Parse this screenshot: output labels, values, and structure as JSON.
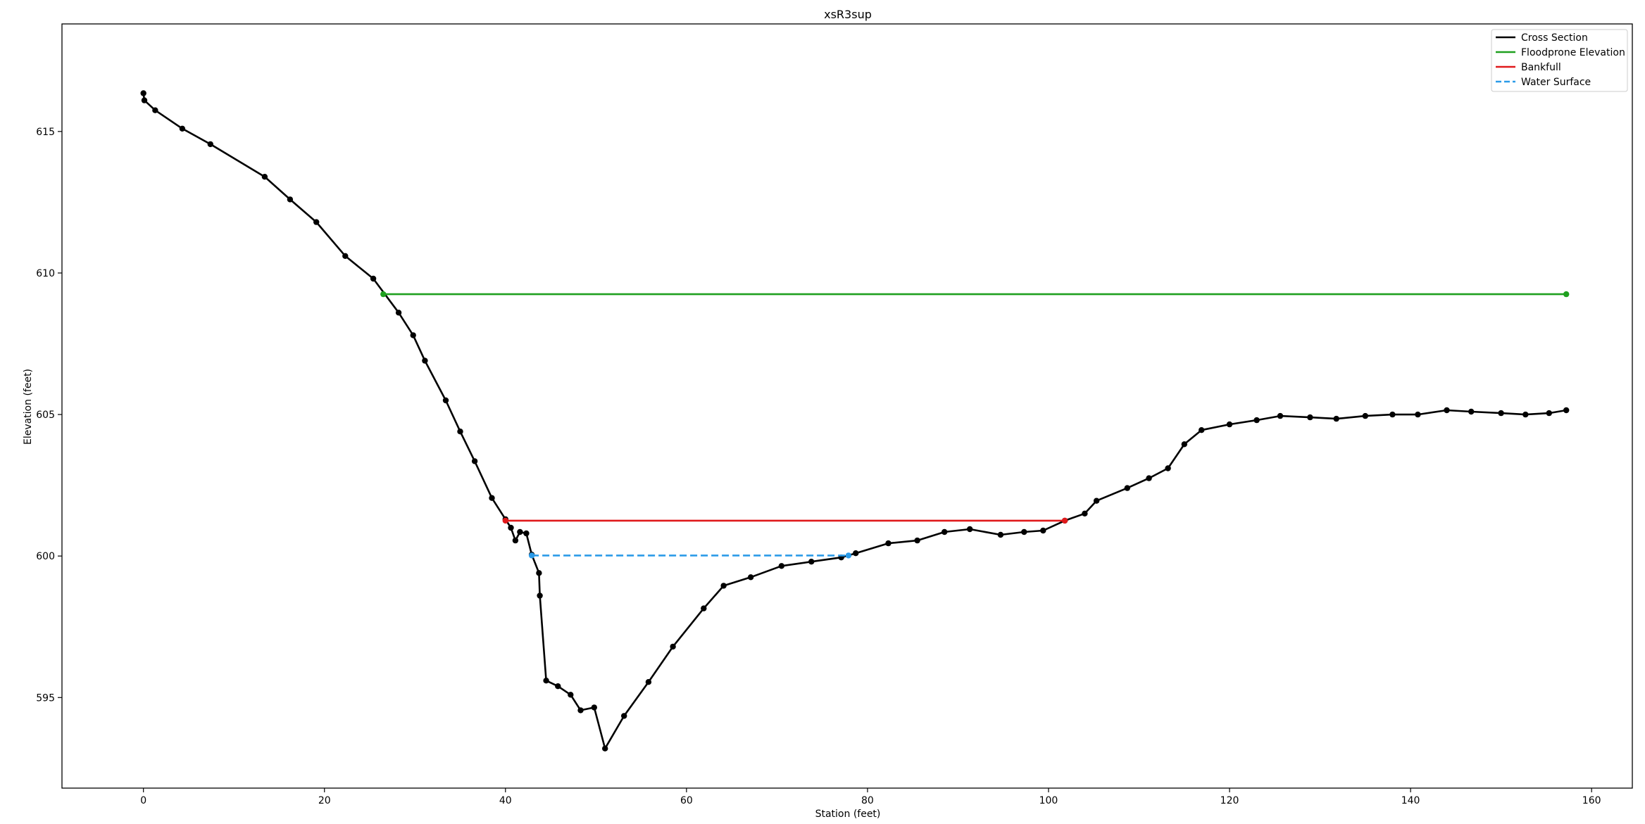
{
  "chart_data": {
    "type": "line",
    "title": "xsR3sup",
    "xlabel": "Station (feet)",
    "ylabel": "Elevation (feet)",
    "xlim": [
      -9,
      164.5
    ],
    "ylim": [
      591.8,
      618.8
    ],
    "xticks": [
      0,
      20,
      40,
      60,
      80,
      100,
      120,
      140,
      160
    ],
    "yticks": [
      595,
      600,
      605,
      610,
      615
    ],
    "grid": false,
    "legend_position": "top-right",
    "series": [
      {
        "name": "Cross Section",
        "color": "#000000",
        "style": "solid",
        "markers": true,
        "points": [
          [
            0,
            616.35
          ],
          [
            0.1,
            616.1
          ],
          [
            1.3,
            615.75
          ],
          [
            4.3,
            615.1
          ],
          [
            7.4,
            614.55
          ],
          [
            13.4,
            613.4
          ],
          [
            16.2,
            612.6
          ],
          [
            19.1,
            611.8
          ],
          [
            22.3,
            610.6
          ],
          [
            25.4,
            609.8
          ],
          [
            28.2,
            608.6
          ],
          [
            29.8,
            607.8
          ],
          [
            31.1,
            606.9
          ],
          [
            33.4,
            605.5
          ],
          [
            35.0,
            604.4
          ],
          [
            36.6,
            603.35
          ],
          [
            38.5,
            602.05
          ],
          [
            40.0,
            601.3
          ],
          [
            40.6,
            601.0
          ],
          [
            41.1,
            600.55
          ],
          [
            41.6,
            600.85
          ],
          [
            42.3,
            600.8
          ],
          [
            42.9,
            600.05
          ],
          [
            43.7,
            599.4
          ],
          [
            43.8,
            598.6
          ],
          [
            44.5,
            595.6
          ],
          [
            45.8,
            595.4
          ],
          [
            47.2,
            595.1
          ],
          [
            48.3,
            594.55
          ],
          [
            49.8,
            594.65
          ],
          [
            51.0,
            593.2
          ],
          [
            53.1,
            594.35
          ],
          [
            55.8,
            595.55
          ],
          [
            58.5,
            596.8
          ],
          [
            61.9,
            598.15
          ],
          [
            64.1,
            598.95
          ],
          [
            67.1,
            599.25
          ],
          [
            70.5,
            599.65
          ],
          [
            73.8,
            599.8
          ],
          [
            77.1,
            599.95
          ],
          [
            78.7,
            600.1
          ],
          [
            82.3,
            600.45
          ],
          [
            85.5,
            600.55
          ],
          [
            88.5,
            600.85
          ],
          [
            91.3,
            600.95
          ],
          [
            94.7,
            600.75
          ],
          [
            97.3,
            600.85
          ],
          [
            99.4,
            600.9
          ],
          [
            101.8,
            601.25
          ],
          [
            104.0,
            601.5
          ],
          [
            105.3,
            601.95
          ],
          [
            108.7,
            602.4
          ],
          [
            111.1,
            602.75
          ],
          [
            113.2,
            603.1
          ],
          [
            115.0,
            603.95
          ],
          [
            116.9,
            604.45
          ],
          [
            120.0,
            604.65
          ],
          [
            123.0,
            604.8
          ],
          [
            125.6,
            604.95
          ],
          [
            128.9,
            604.9
          ],
          [
            131.8,
            604.85
          ],
          [
            135.0,
            604.95
          ],
          [
            138.0,
            605.0
          ],
          [
            140.8,
            605.0
          ],
          [
            144.0,
            605.15
          ],
          [
            146.7,
            605.1
          ],
          [
            150.0,
            605.05
          ],
          [
            152.7,
            605.0
          ],
          [
            155.3,
            605.05
          ],
          [
            157.2,
            605.15
          ]
        ]
      },
      {
        "name": "Floodprone Elevation",
        "color": "#1fa01f",
        "style": "solid",
        "markers": "ends",
        "points": [
          [
            26.5,
            609.25
          ],
          [
            157.2,
            609.25
          ]
        ]
      },
      {
        "name": "Bankfull",
        "color": "#e0191b",
        "style": "solid",
        "markers": "ends",
        "points": [
          [
            40.0,
            601.25
          ],
          [
            101.8,
            601.25
          ]
        ]
      },
      {
        "name": "Water Surface",
        "color": "#2b9be8",
        "style": "dashed",
        "markers": "ends",
        "points": [
          [
            42.9,
            600.02
          ],
          [
            77.9,
            600.02
          ]
        ]
      }
    ]
  }
}
